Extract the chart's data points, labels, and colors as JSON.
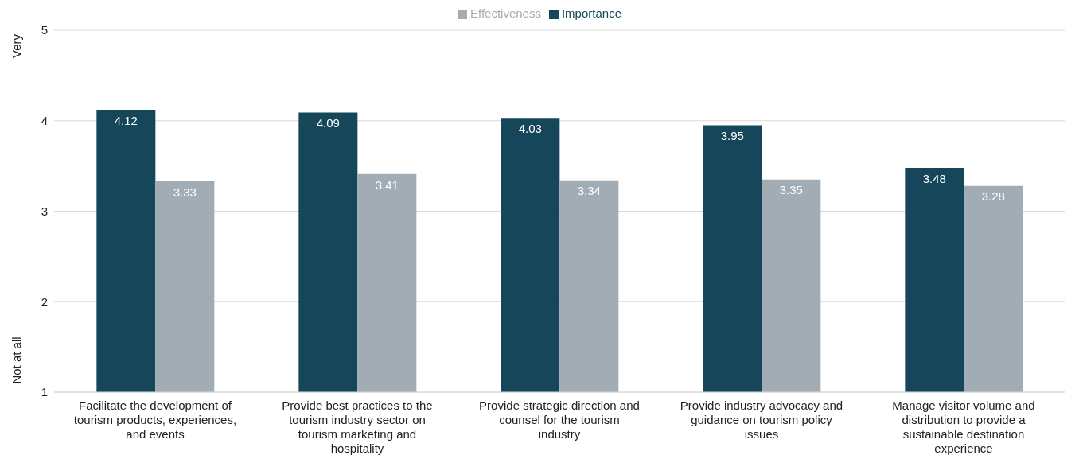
{
  "chart_data": {
    "type": "bar",
    "categories": [
      "Facilitate the development of tourism products, experiences, and events",
      "Provide best practices to the tourism industry sector on tourism marketing and hospitality",
      "Provide strategic direction and counsel for the tourism industry",
      "Provide industry advocacy and guidance on tourism policy issues",
      "Manage visitor volume and distribution to provide a sustainable destination experience"
    ],
    "series": [
      {
        "name": "Importance",
        "color": "#15465a",
        "values": [
          4.12,
          4.09,
          4.03,
          3.95,
          3.48
        ]
      },
      {
        "name": "Effectiveness",
        "color": "#a2acb5",
        "values": [
          3.33,
          3.41,
          3.34,
          3.35,
          3.28
        ]
      }
    ],
    "ylim": [
      1,
      5
    ],
    "yticks": [
      1,
      2,
      3,
      4,
      5
    ],
    "grid": "y",
    "legend": "top",
    "data_labels": true,
    "annotations": [
      "Very",
      "Not at all"
    ]
  }
}
